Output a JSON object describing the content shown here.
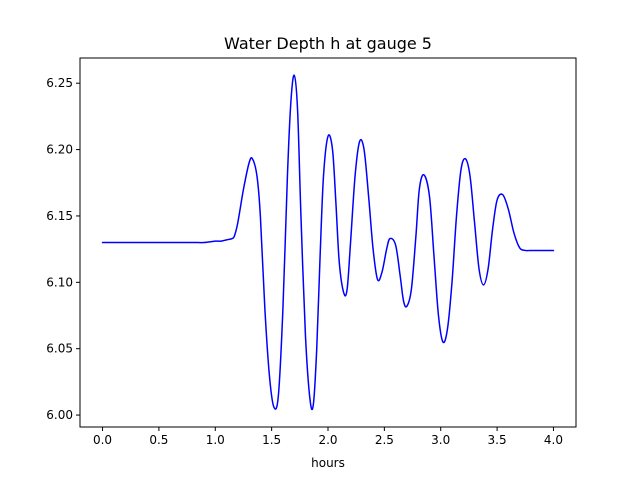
{
  "chart_data": {
    "type": "line",
    "title": "Water Depth h at gauge 5",
    "xlabel": "hours",
    "ylabel": "",
    "xlim": [
      -0.2,
      4.2
    ],
    "ylim": [
      5.991,
      6.269
    ],
    "xticks": [
      0.0,
      0.5,
      1.0,
      1.5,
      2.0,
      2.5,
      3.0,
      3.5,
      4.0
    ],
    "xtick_labels": [
      "0.0",
      "0.5",
      "1.0",
      "1.5",
      "2.0",
      "2.5",
      "3.0",
      "3.5",
      "4.0"
    ],
    "yticks": [
      6.0,
      6.05,
      6.1,
      6.15,
      6.2,
      6.25
    ],
    "ytick_labels": [
      "6.00",
      "6.05",
      "6.10",
      "6.15",
      "6.20",
      "6.25"
    ],
    "grid": false,
    "series": [
      {
        "color": "#0000ff",
        "x": [
          0.0,
          0.2,
          0.4,
          0.6,
          0.8,
          0.9,
          1.0,
          1.05,
          1.1,
          1.15,
          1.17,
          1.2,
          1.25,
          1.3,
          1.33,
          1.37,
          1.4,
          1.44,
          1.48,
          1.52,
          1.56,
          1.6,
          1.64,
          1.67,
          1.7,
          1.73,
          1.76,
          1.8,
          1.84,
          1.87,
          1.9,
          1.93,
          1.96,
          2.0,
          2.04,
          2.07,
          2.1,
          2.14,
          2.17,
          2.2,
          2.24,
          2.28,
          2.32,
          2.36,
          2.4,
          2.44,
          2.48,
          2.52,
          2.55,
          2.6,
          2.64,
          2.67,
          2.7,
          2.74,
          2.78,
          2.81,
          2.85,
          2.9,
          2.94,
          2.98,
          3.02,
          3.06,
          3.1,
          3.14,
          3.18,
          3.22,
          3.26,
          3.3,
          3.34,
          3.38,
          3.42,
          3.46,
          3.5,
          3.55,
          3.6,
          3.65,
          3.7,
          3.75,
          3.79,
          3.83,
          3.87,
          3.91,
          3.95,
          4.0
        ],
        "y": [
          6.13,
          6.13,
          6.13,
          6.13,
          6.13,
          6.13,
          6.131,
          6.131,
          6.132,
          6.133,
          6.135,
          6.145,
          6.17,
          6.19,
          6.193,
          6.18,
          6.15,
          6.08,
          6.03,
          6.006,
          6.015,
          6.08,
          6.18,
          6.235,
          6.256,
          6.23,
          6.15,
          6.06,
          6.012,
          6.008,
          6.05,
          6.12,
          6.18,
          6.21,
          6.2,
          6.16,
          6.115,
          6.092,
          6.095,
          6.13,
          6.18,
          6.206,
          6.2,
          6.165,
          6.125,
          6.102,
          6.108,
          6.125,
          6.133,
          6.128,
          6.105,
          6.086,
          6.082,
          6.095,
          6.135,
          6.17,
          6.181,
          6.165,
          6.12,
          6.075,
          6.055,
          6.065,
          6.1,
          6.15,
          6.185,
          6.193,
          6.18,
          6.145,
          6.11,
          6.098,
          6.11,
          6.14,
          6.162,
          6.166,
          6.155,
          6.137,
          6.126,
          6.124,
          6.124,
          6.124,
          6.124,
          6.124,
          6.124,
          6.124
        ]
      }
    ]
  }
}
